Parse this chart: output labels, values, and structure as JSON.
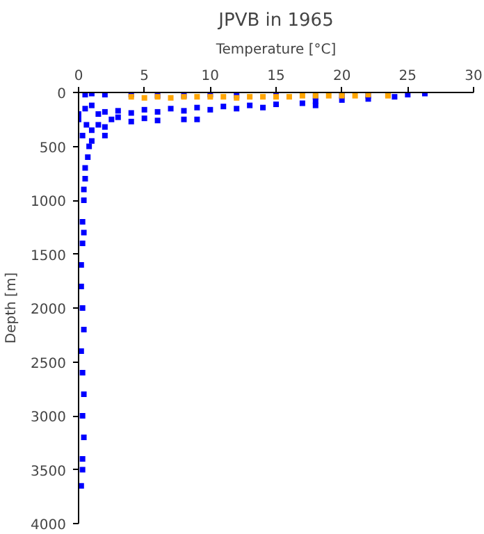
{
  "chart_data": {
    "type": "scatter",
    "title": "JPVB in 1965",
    "xlabel": "Temperature [°C]",
    "ylabel": "Depth [m]",
    "xlim": [
      0,
      30
    ],
    "xticks": [
      0,
      5,
      10,
      15,
      20,
      25,
      30
    ],
    "ylim": [
      4000,
      0
    ],
    "yticks": [
      0,
      500,
      1000,
      1500,
      2000,
      2500,
      3000,
      3500,
      4000
    ],
    "grid": false,
    "marker": "square",
    "series": [
      {
        "color": "#0000ff",
        "x": [
          26.3,
          25,
          23.5,
          22,
          20,
          18,
          15,
          12,
          10,
          8,
          6,
          4,
          2,
          1,
          0.5,
          24,
          22,
          20,
          18,
          17,
          15,
          13,
          11,
          9,
          7,
          5,
          3,
          2,
          1,
          0.5,
          18,
          14,
          12,
          10,
          8,
          6,
          4,
          3,
          2.5,
          5,
          6,
          8,
          9,
          4,
          1.5,
          1,
          2,
          2,
          1,
          0.8,
          0.7,
          0.5,
          0.5,
          0.4,
          0.4,
          0.3,
          0.3,
          0.4,
          0.2,
          0.2,
          0.3,
          0.4,
          0.2,
          0.3,
          0.4,
          0.3,
          0.4,
          0.3,
          0.3,
          0.2,
          0,
          0,
          0.3,
          0.6,
          1.5
        ],
        "values": [
          10,
          20,
          20,
          30,
          30,
          40,
          10,
          30,
          20,
          30,
          30,
          20,
          20,
          10,
          20,
          40,
          60,
          70,
          80,
          100,
          110,
          120,
          130,
          140,
          150,
          160,
          170,
          180,
          120,
          150,
          120,
          140,
          150,
          160,
          170,
          180,
          190,
          230,
          250,
          240,
          260,
          250,
          250,
          270,
          300,
          350,
          320,
          400,
          450,
          500,
          600,
          700,
          800,
          900,
          1000,
          1200,
          1400,
          1300,
          1600,
          1800,
          2000,
          2200,
          2400,
          2600,
          2800,
          3000,
          3200,
          3400,
          3500,
          3650,
          200,
          250,
          400,
          300,
          200
        ]
      },
      {
        "color": "#ffa500",
        "x": [
          4,
          5,
          6,
          7,
          8,
          9,
          10,
          11,
          12,
          13,
          14,
          15,
          16,
          17,
          18,
          19,
          20,
          21,
          22,
          23.5
        ],
        "values": [
          40,
          50,
          40,
          50,
          40,
          40,
          40,
          40,
          50,
          40,
          40,
          40,
          40,
          30,
          30,
          30,
          30,
          30,
          20,
          30
        ]
      }
    ]
  }
}
